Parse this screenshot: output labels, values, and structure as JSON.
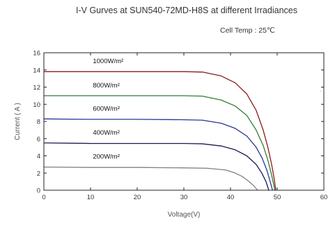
{
  "chart_data": {
    "type": "line",
    "title": "I-V Gurves at SUN540-72MD-H8S at different Irradiances",
    "subtitle": "Cell Temp : 25℃",
    "xlabel": "Voltage(V)",
    "ylabel": "Current ( A )",
    "xlim": [
      0,
      60
    ],
    "ylim": [
      0,
      16
    ],
    "x_ticks": [
      "0",
      "10",
      "20",
      "30",
      "40",
      "50",
      "60"
    ],
    "y_ticks": [
      "0",
      "2",
      "4",
      "6",
      "8",
      "10",
      "12",
      "14",
      "16"
    ],
    "grid": false,
    "series": [
      {
        "name": "1000W/m²",
        "color": "#8B1A1A",
        "points": [
          [
            0,
            13.8
          ],
          [
            10,
            13.8
          ],
          [
            20,
            13.8
          ],
          [
            30,
            13.8
          ],
          [
            34,
            13.75
          ],
          [
            38,
            13.3
          ],
          [
            41,
            12.5
          ],
          [
            43.5,
            11.2
          ],
          [
            45.5,
            9.3
          ],
          [
            47,
            7.0
          ],
          [
            48,
            5.0
          ],
          [
            48.8,
            3.0
          ],
          [
            49.3,
            1.5
          ],
          [
            49.7,
            0
          ]
        ]
      },
      {
        "name": "800W/m²",
        "color": "#2E7D32",
        "points": [
          [
            0,
            11.0
          ],
          [
            10,
            11.0
          ],
          [
            20,
            11.0
          ],
          [
            30,
            11.0
          ],
          [
            34,
            10.95
          ],
          [
            38,
            10.5
          ],
          [
            41,
            9.8
          ],
          [
            43.5,
            8.7
          ],
          [
            45.5,
            7.0
          ],
          [
            47,
            5.2
          ],
          [
            48,
            3.5
          ],
          [
            48.7,
            2.0
          ],
          [
            49.2,
            0.8
          ],
          [
            49.5,
            0
          ]
        ]
      },
      {
        "name": "600W/m²",
        "color": "#283593",
        "points": [
          [
            0,
            8.3
          ],
          [
            10,
            8.25
          ],
          [
            20,
            8.25
          ],
          [
            30,
            8.2
          ],
          [
            34,
            8.15
          ],
          [
            38,
            7.8
          ],
          [
            41,
            7.2
          ],
          [
            43.5,
            6.3
          ],
          [
            45.5,
            5.0
          ],
          [
            46.8,
            3.7
          ],
          [
            47.8,
            2.3
          ],
          [
            48.5,
            1.0
          ],
          [
            49.0,
            0
          ]
        ]
      },
      {
        "name": "400W/m²",
        "color": "#1A1A4E",
        "points": [
          [
            0,
            5.5
          ],
          [
            10,
            5.45
          ],
          [
            20,
            5.45
          ],
          [
            30,
            5.45
          ],
          [
            34,
            5.4
          ],
          [
            38,
            5.15
          ],
          [
            41,
            4.7
          ],
          [
            43.5,
            4.0
          ],
          [
            45.5,
            3.0
          ],
          [
            46.7,
            2.0
          ],
          [
            47.6,
            1.0
          ],
          [
            48.2,
            0
          ]
        ]
      },
      {
        "name": "200W/m²",
        "color": "#808080",
        "points": [
          [
            0,
            2.7
          ],
          [
            10,
            2.65
          ],
          [
            20,
            2.65
          ],
          [
            30,
            2.6
          ],
          [
            35,
            2.55
          ],
          [
            39,
            2.35
          ],
          [
            41,
            2.0
          ],
          [
            42.5,
            1.6
          ],
          [
            44,
            1.0
          ],
          [
            45,
            0.5
          ],
          [
            45.8,
            0
          ]
        ]
      }
    ]
  }
}
